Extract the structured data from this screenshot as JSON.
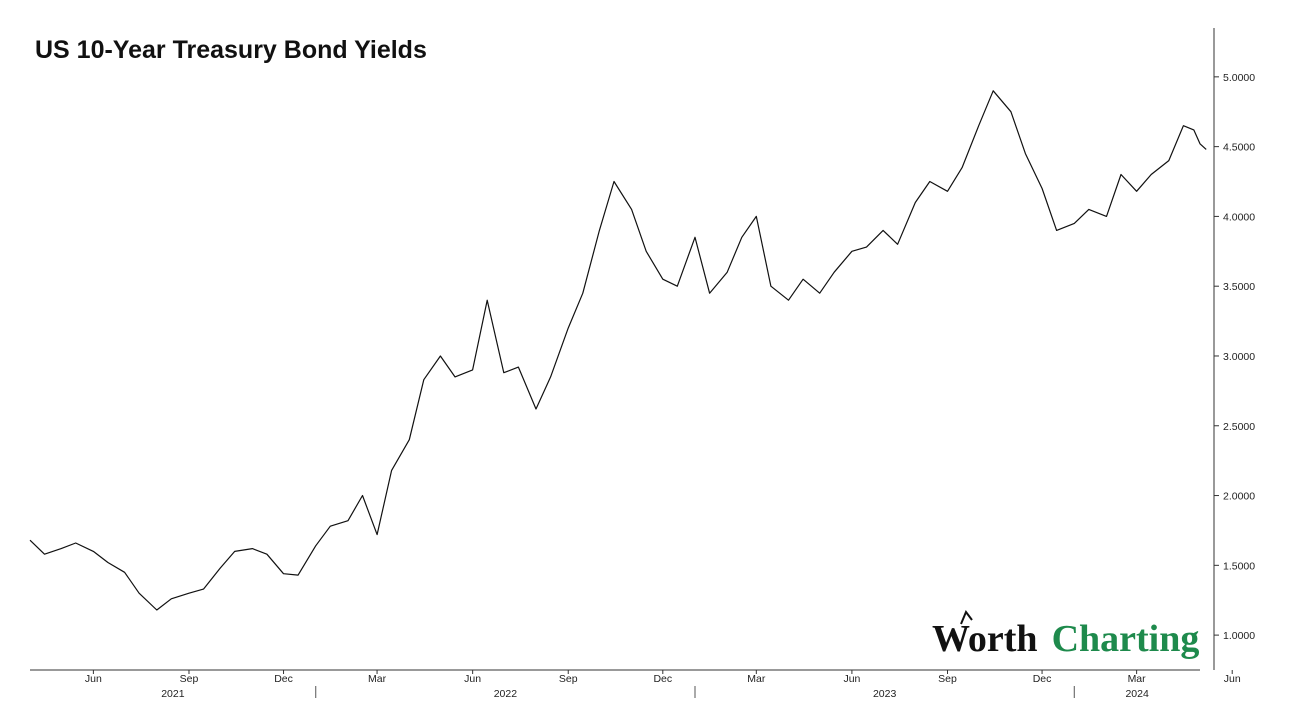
{
  "chart_data": {
    "type": "line",
    "title": "US 10-Year Treasury Bond Yields",
    "xlabel": "",
    "ylabel": "",
    "x_start": "2021-04-01",
    "x_end": "2024-05-01",
    "ylim": [
      0.75,
      5.35
    ],
    "y_ticks": [
      "1.0000",
      "1.5000",
      "2.0000",
      "2.5000",
      "3.0000",
      "3.5000",
      "4.0000",
      "4.5000",
      "5.0000"
    ],
    "x_ticks": [
      {
        "label": "Jun",
        "date": "2021-06-01"
      },
      {
        "label": "Sep",
        "date": "2021-09-01"
      },
      {
        "label": "Dec",
        "date": "2021-12-01"
      },
      {
        "label": "Mar",
        "date": "2022-03-01"
      },
      {
        "label": "Jun",
        "date": "2022-06-01"
      },
      {
        "label": "Sep",
        "date": "2022-09-01"
      },
      {
        "label": "Dec",
        "date": "2022-12-01"
      },
      {
        "label": "Mar",
        "date": "2023-03-01"
      },
      {
        "label": "Jun",
        "date": "2023-06-01"
      },
      {
        "label": "Sep",
        "date": "2023-09-01"
      },
      {
        "label": "Dec",
        "date": "2023-12-01"
      },
      {
        "label": "Mar",
        "date": "2024-03-01"
      },
      {
        "label": "Jun",
        "date": "2024-06-01"
      }
    ],
    "year_labels": [
      "2021",
      "2022",
      "2023",
      "2024"
    ],
    "series": [
      {
        "color": "#111111",
        "points": [
          [
            "2021-04-01",
            1.68
          ],
          [
            "2021-04-15",
            1.58
          ],
          [
            "2021-05-01",
            1.62
          ],
          [
            "2021-05-15",
            1.66
          ],
          [
            "2021-06-01",
            1.6
          ],
          [
            "2021-06-15",
            1.52
          ],
          [
            "2021-07-01",
            1.45
          ],
          [
            "2021-07-15",
            1.3
          ],
          [
            "2021-08-01",
            1.18
          ],
          [
            "2021-08-15",
            1.26
          ],
          [
            "2021-09-01",
            1.3
          ],
          [
            "2021-09-15",
            1.33
          ],
          [
            "2021-10-01",
            1.48
          ],
          [
            "2021-10-15",
            1.6
          ],
          [
            "2021-11-01",
            1.62
          ],
          [
            "2021-11-15",
            1.58
          ],
          [
            "2021-12-01",
            1.44
          ],
          [
            "2021-12-15",
            1.43
          ],
          [
            "2022-01-01",
            1.64
          ],
          [
            "2022-01-15",
            1.78
          ],
          [
            "2022-02-01",
            1.82
          ],
          [
            "2022-02-15",
            2.0
          ],
          [
            "2022-03-01",
            1.72
          ],
          [
            "2022-03-15",
            2.18
          ],
          [
            "2022-04-01",
            2.4
          ],
          [
            "2022-04-15",
            2.83
          ],
          [
            "2022-05-01",
            3.0
          ],
          [
            "2022-05-15",
            2.85
          ],
          [
            "2022-06-01",
            2.9
          ],
          [
            "2022-06-15",
            3.4
          ],
          [
            "2022-07-01",
            2.88
          ],
          [
            "2022-07-15",
            2.92
          ],
          [
            "2022-08-01",
            2.62
          ],
          [
            "2022-08-15",
            2.85
          ],
          [
            "2022-09-01",
            3.2
          ],
          [
            "2022-09-15",
            3.45
          ],
          [
            "2022-10-01",
            3.9
          ],
          [
            "2022-10-15",
            4.25
          ],
          [
            "2022-11-01",
            4.05
          ],
          [
            "2022-11-15",
            3.75
          ],
          [
            "2022-12-01",
            3.55
          ],
          [
            "2022-12-15",
            3.5
          ],
          [
            "2023-01-01",
            3.85
          ],
          [
            "2023-01-15",
            3.45
          ],
          [
            "2023-02-01",
            3.6
          ],
          [
            "2023-02-15",
            3.85
          ],
          [
            "2023-03-01",
            4.0
          ],
          [
            "2023-03-15",
            3.5
          ],
          [
            "2023-04-01",
            3.4
          ],
          [
            "2023-04-15",
            3.55
          ],
          [
            "2023-05-01",
            3.45
          ],
          [
            "2023-05-15",
            3.6
          ],
          [
            "2023-06-01",
            3.75
          ],
          [
            "2023-06-15",
            3.78
          ],
          [
            "2023-07-01",
            3.9
          ],
          [
            "2023-07-15",
            3.8
          ],
          [
            "2023-08-01",
            4.1
          ],
          [
            "2023-08-15",
            4.25
          ],
          [
            "2023-09-01",
            4.18
          ],
          [
            "2023-09-15",
            4.35
          ],
          [
            "2023-10-01",
            4.65
          ],
          [
            "2023-10-15",
            4.9
          ],
          [
            "2023-11-01",
            4.75
          ],
          [
            "2023-11-15",
            4.45
          ],
          [
            "2023-12-01",
            4.2
          ],
          [
            "2023-12-15",
            3.9
          ],
          [
            "2024-01-01",
            3.95
          ],
          [
            "2024-01-15",
            4.05
          ],
          [
            "2024-02-01",
            4.0
          ],
          [
            "2024-02-15",
            4.3
          ],
          [
            "2024-03-01",
            4.18
          ],
          [
            "2024-03-15",
            4.3
          ],
          [
            "2024-04-01",
            4.4
          ],
          [
            "2024-04-15",
            4.65
          ],
          [
            "2024-04-25",
            4.62
          ],
          [
            "2024-05-01",
            4.52
          ],
          [
            "2024-05-07",
            4.48
          ]
        ]
      }
    ]
  },
  "logo": {
    "word1": "Worth",
    "word2": "Charting",
    "word1_color": "#111111",
    "word2_color": "#1e8a4c"
  }
}
